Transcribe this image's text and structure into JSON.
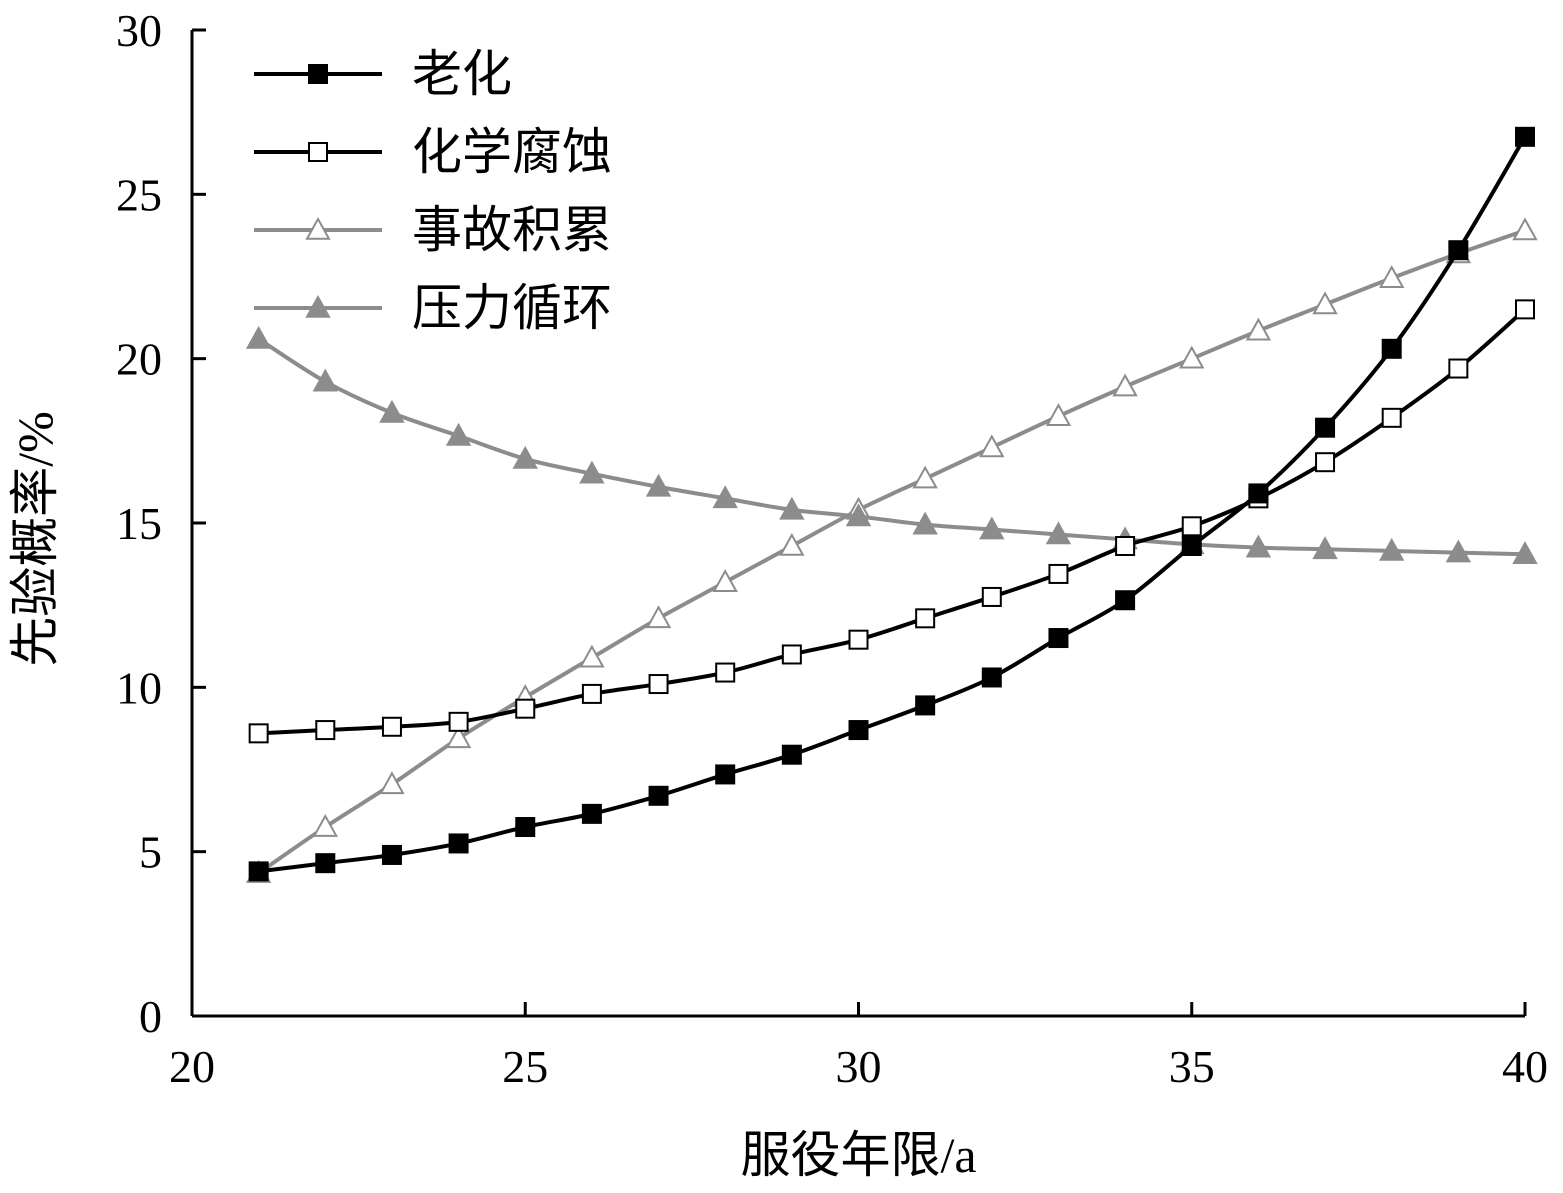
{
  "chart_data": {
    "type": "line",
    "title": "",
    "xlabel": "服役年限/a",
    "ylabel": "先验概率/%",
    "xlim": [
      20,
      40
    ],
    "ylim": [
      0,
      30
    ],
    "x_ticks": [
      "20",
      "25",
      "30",
      "35",
      "40"
    ],
    "y_ticks": [
      "0",
      "5",
      "10",
      "15",
      "20",
      "25",
      "30"
    ],
    "grid": false,
    "legend_position": "top-left",
    "x": [
      21,
      22,
      23,
      24,
      25,
      26,
      27,
      28,
      29,
      30,
      31,
      32,
      33,
      34,
      35,
      36,
      37,
      38,
      39,
      40
    ],
    "series": [
      {
        "name": "老化",
        "color": "#000000",
        "marker": "square-filled",
        "values": [
          4.4,
          4.65,
          4.9,
          5.25,
          5.75,
          6.15,
          6.7,
          7.35,
          7.95,
          8.7,
          9.45,
          10.3,
          11.5,
          12.65,
          14.3,
          15.9,
          17.9,
          20.3,
          23.3,
          26.75
        ]
      },
      {
        "name": "化学腐蚀",
        "color": "#000000",
        "marker": "square-open",
        "values": [
          8.6,
          8.7,
          8.8,
          8.95,
          9.35,
          9.8,
          10.1,
          10.45,
          11.0,
          11.45,
          12.1,
          12.75,
          13.45,
          14.3,
          14.9,
          15.75,
          16.85,
          18.2,
          19.7,
          21.5
        ]
      },
      {
        "name": "事故积累",
        "color": "#8c8c8c",
        "marker": "triangle-open",
        "values": [
          4.35,
          5.75,
          7.05,
          8.45,
          9.7,
          10.9,
          12.1,
          13.2,
          14.3,
          15.4,
          16.35,
          17.3,
          18.25,
          19.15,
          20.0,
          20.85,
          21.65,
          22.45,
          23.2,
          23.9
        ]
      },
      {
        "name": "压力循环",
        "color": "#8c8c8c",
        "marker": "triangle-filled",
        "values": [
          20.6,
          19.3,
          18.35,
          17.65,
          16.95,
          16.5,
          16.1,
          15.75,
          15.4,
          15.2,
          14.95,
          14.8,
          14.65,
          14.5,
          14.35,
          14.25,
          14.2,
          14.15,
          14.1,
          14.05
        ]
      }
    ]
  }
}
